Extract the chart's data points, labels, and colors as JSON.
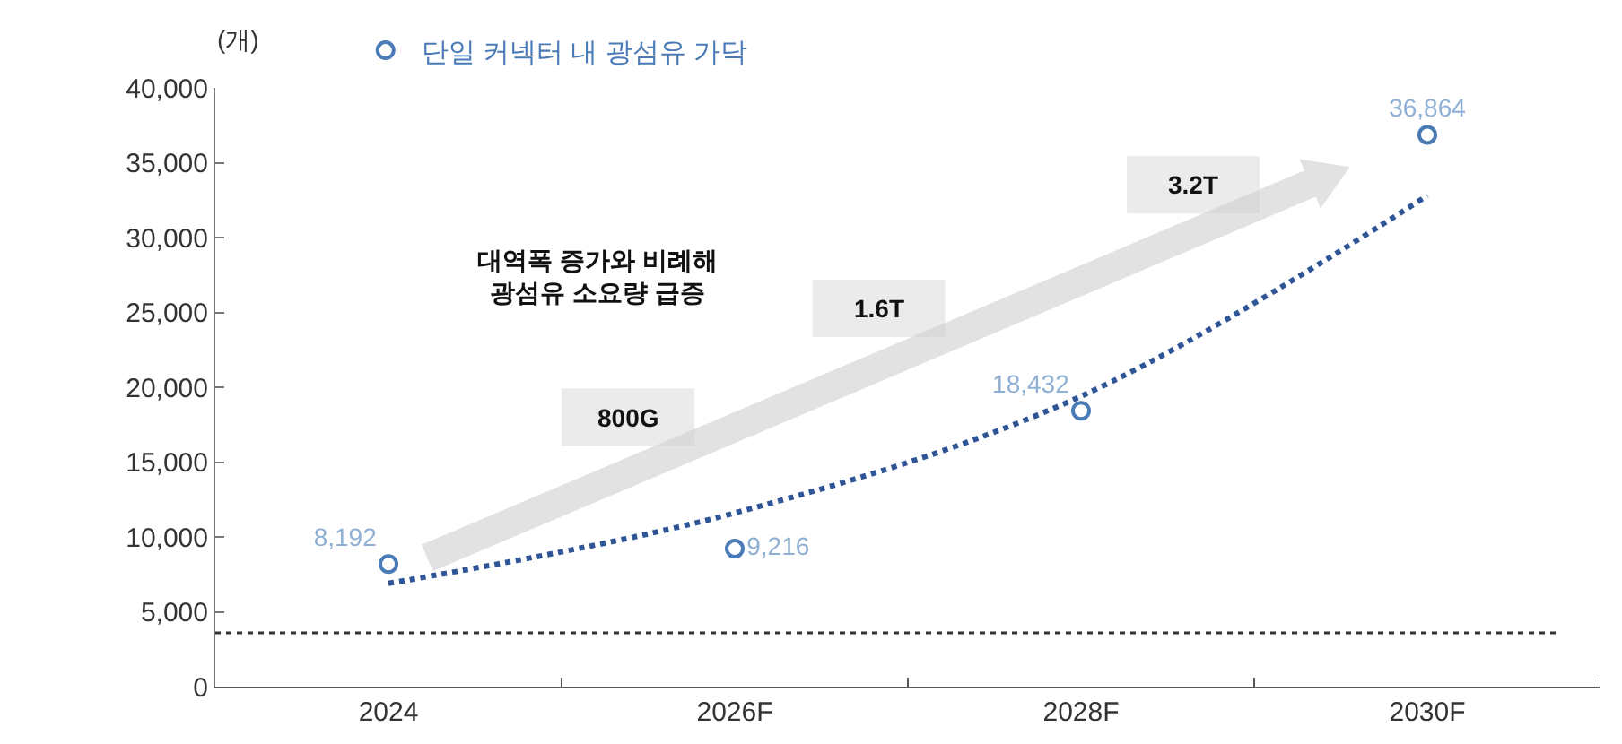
{
  "chart_data": {
    "type": "scatter",
    "ylabel": "(개)",
    "categories": [
      "2024",
      "2026F",
      "2028F",
      "2030F"
    ],
    "series": [
      {
        "name": "단일 커넥터 내 광섬유 가닥",
        "color": "#4a7bb7",
        "marker": "circle",
        "values": [
          8192,
          9216,
          18432,
          36864
        ],
        "value_labels": [
          "8,192",
          "9,216",
          "18,432",
          "36,864"
        ]
      },
      {
        "type": "line",
        "color": "#2f5597",
        "line_style": "dotted",
        "values": [
          6900,
          11600,
          19400,
          32800
        ]
      }
    ],
    "ylim": [
      0,
      40000
    ],
    "yticks": [
      0,
      {
        "value": 5000,
        "label": "5,000"
      },
      {
        "value": 10000,
        "label": "10,000"
      },
      {
        "value": 15000,
        "label": "15,000"
      },
      {
        "value": 20000,
        "label": "20,000"
      },
      {
        "value": 25000,
        "label": "25,000"
      },
      {
        "value": 30000,
        "label": "30,000"
      },
      {
        "value": 35000,
        "label": "35,000"
      },
      {
        "value": 40000,
        "label": "40,000"
      }
    ],
    "ref_lines": [
      {
        "axis": "y",
        "value": 3600,
        "color": "#333333",
        "line_style": "dotted"
      }
    ],
    "annotations": [
      "대역폭 증가와 비례해\n광섬유 소요량 급증",
      "800G",
      "1.6T",
      "3.2T"
    ],
    "grid": false,
    "legend": "top left"
  }
}
